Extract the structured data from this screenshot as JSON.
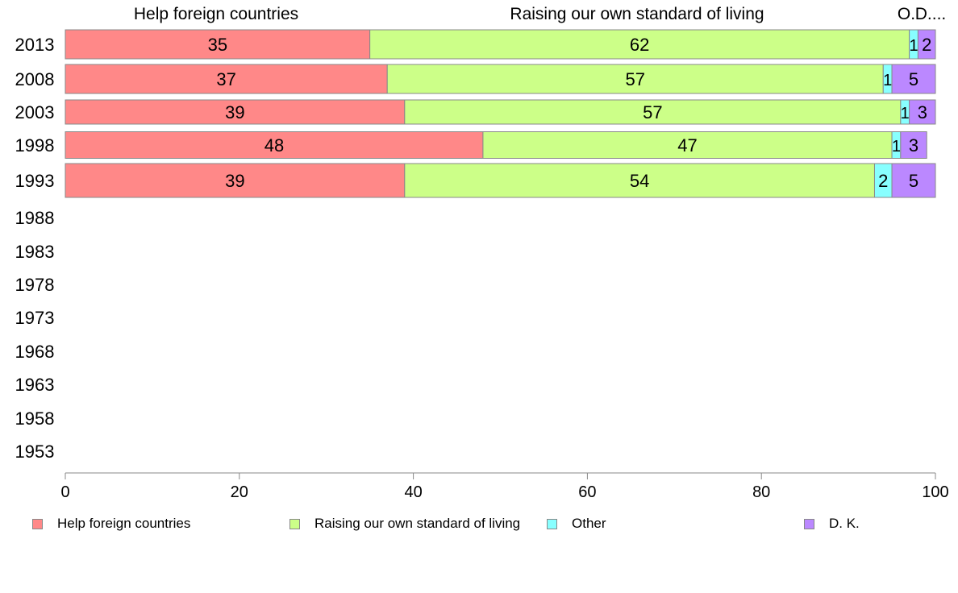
{
  "chart_data": {
    "type": "bar",
    "orientation": "horizontal",
    "stacked": true,
    "categories": [
      "2013",
      "2008",
      "2003",
      "1998",
      "1993",
      "1988",
      "1983",
      "1978",
      "1973",
      "1968",
      "1963",
      "1958",
      "1953"
    ],
    "series": [
      {
        "name": "Help foreign countries",
        "color": "#ff8888",
        "values": [
          35,
          37,
          39,
          48,
          39,
          null,
          null,
          null,
          null,
          null,
          null,
          null,
          null
        ]
      },
      {
        "name": "Raising our own standard of living",
        "color": "#ccff88",
        "values": [
          62,
          57,
          57,
          47,
          54,
          null,
          null,
          null,
          null,
          null,
          null,
          null,
          null
        ]
      },
      {
        "name": "Other",
        "color": "#88ffff",
        "values": [
          1,
          1,
          1,
          1,
          2,
          null,
          null,
          null,
          null,
          null,
          null,
          null,
          null
        ]
      },
      {
        "name": "D. K.",
        "color": "#bb88ff",
        "values": [
          2,
          5,
          3,
          3,
          5,
          null,
          null,
          null,
          null,
          null,
          null,
          null,
          null
        ]
      }
    ],
    "column_headers": [
      "Help foreign countries",
      "Raising our own standard of living",
      "O.",
      "D...."
    ],
    "xlim": [
      0,
      100
    ],
    "xticks": [
      0,
      20,
      40,
      60,
      80,
      100
    ],
    "legend_position": "bottom",
    "grid": false
  }
}
